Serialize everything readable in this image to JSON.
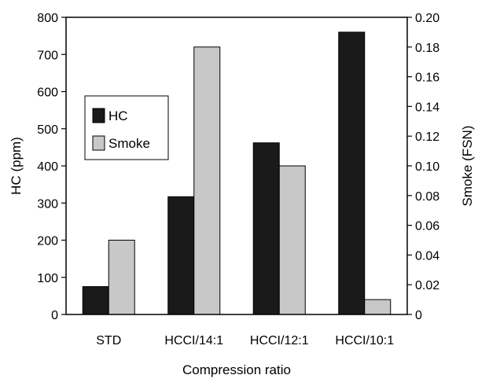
{
  "chart_data": {
    "type": "bar",
    "categories": [
      "STD",
      "HCCI/14:1",
      "HCCI/12:1",
      "HCCI/10:1"
    ],
    "series": [
      {
        "name": "HC",
        "axis": "left",
        "color": "#1a1a1a",
        "values": [
          75,
          317,
          462,
          760
        ]
      },
      {
        "name": "Smoke",
        "axis": "right",
        "color": "#c8c8c8",
        "values": [
          0.05,
          0.18,
          0.1,
          0.01
        ]
      }
    ],
    "xlabel": "Compression ratio",
    "ylabel_left": "HC (ppm)",
    "ylabel_right": "Smoke (FSN)",
    "ylim_left": [
      0,
      800
    ],
    "ylim_right": [
      0,
      0.2
    ],
    "yticks_left": [
      "0",
      "100",
      "200",
      "300",
      "400",
      "500",
      "600",
      "700",
      "800"
    ],
    "yticks_right": [
      "0",
      "0.02",
      "0.04",
      "0.06",
      "0.08",
      "0.10",
      "0.12",
      "0.14",
      "0.16",
      "0.18",
      "0.20"
    ],
    "grid": false,
    "legend_position": "upper-left"
  }
}
